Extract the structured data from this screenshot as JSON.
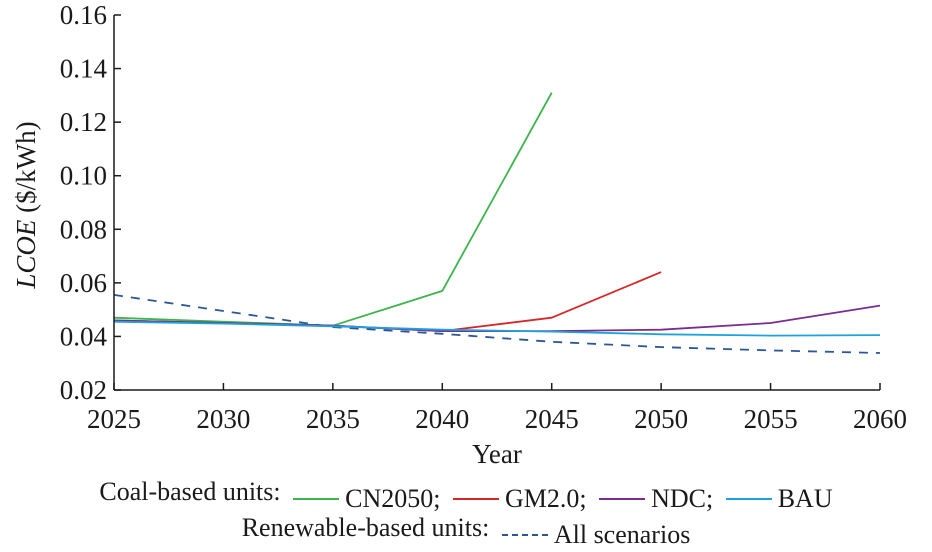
{
  "chart_data": {
    "type": "line",
    "xlabel": "Year",
    "ylabel_italic": "LCOE",
    "ylabel_unit": " ($/kWh)",
    "xlim": [
      2025,
      2060
    ],
    "ylim": [
      0.02,
      0.16
    ],
    "xticks": [
      "2025",
      "2030",
      "2035",
      "2040",
      "2045",
      "2050",
      "2055",
      "2060"
    ],
    "yticks": [
      "0.02",
      "0.04",
      "0.06",
      "0.08",
      "0.10",
      "0.12",
      "0.14",
      "0.16"
    ],
    "grid": false,
    "legend_placement": "bottom",
    "series": [
      {
        "name": "CN2050",
        "group": "coal",
        "color": "#3cb44b",
        "style": "solid",
        "x": [
          2025,
          2035,
          2040,
          2045
        ],
        "y": [
          0.047,
          0.044,
          0.057,
          0.131
        ]
      },
      {
        "name": "GM2.0",
        "group": "coal",
        "color": "#d62728",
        "style": "solid",
        "x": [
          2025,
          2035,
          2040,
          2045,
          2050
        ],
        "y": [
          0.046,
          0.044,
          0.042,
          0.047,
          0.064
        ]
      },
      {
        "name": "NDC",
        "group": "coal",
        "color": "#7b2d8e",
        "style": "solid",
        "x": [
          2025,
          2035,
          2040,
          2045,
          2050,
          2055,
          2060
        ],
        "y": [
          0.046,
          0.044,
          0.042,
          0.042,
          0.0425,
          0.045,
          0.0515
        ]
      },
      {
        "name": "BAU",
        "group": "coal",
        "color": "#1ca3dc",
        "style": "solid",
        "x": [
          2025,
          2030,
          2035,
          2040,
          2045,
          2050,
          2055,
          2060
        ],
        "y": [
          0.0455,
          0.0448,
          0.0438,
          0.0425,
          0.0418,
          0.0408,
          0.0403,
          0.0405
        ]
      },
      {
        "name": "All scenarios",
        "group": "renewable",
        "color": "#2b5797",
        "style": "dashed",
        "x": [
          2025,
          2030,
          2035,
          2040,
          2045,
          2050,
          2055,
          2060
        ],
        "y": [
          0.0555,
          0.0495,
          0.0435,
          0.041,
          0.038,
          0.036,
          0.0348,
          0.0338
        ]
      }
    ]
  },
  "legend": {
    "coal_label": "Coal-based units:",
    "renewable_label": "Renewable-based units:",
    "items": [
      {
        "label": "CN2050;",
        "color": "#3cb44b"
      },
      {
        "label": "GM2.0;",
        "color": "#d62728"
      },
      {
        "label": "NDC;",
        "color": "#7b2d8e"
      },
      {
        "label": "BAU",
        "color": "#1ca3dc"
      }
    ],
    "renewable_item": {
      "label": "All scenarios",
      "color": "#2b5797"
    }
  }
}
